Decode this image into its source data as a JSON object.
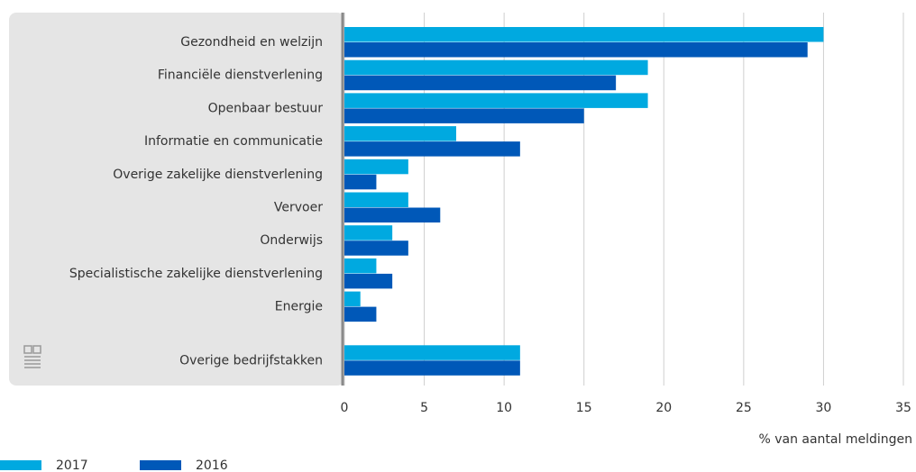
{
  "chart_data": {
    "type": "bar",
    "orientation": "horizontal",
    "categories": [
      "Gezondheid en welzijn",
      "Financiële dienstverlening",
      "Openbaar bestuur",
      "Informatie en communicatie",
      "Overige zakelijke dienstverlening",
      "Vervoer",
      "Onderwijs",
      "Specialistische zakelijke dienstverlening",
      "Energie",
      "Overige bedrijfstakken"
    ],
    "series": [
      {
        "name": "2017",
        "color": "#00a9e0",
        "values": [
          30,
          19,
          19,
          7,
          4,
          4,
          3,
          2,
          1,
          11
        ]
      },
      {
        "name": "2016",
        "color": "#0058b8",
        "values": [
          29,
          17,
          15,
          11,
          2,
          6,
          4,
          3,
          2,
          11
        ]
      }
    ],
    "xlabel": "% van aantal meldingen",
    "xlim": [
      0,
      35
    ],
    "xticks": [
      0,
      5,
      10,
      15,
      20,
      25,
      30,
      35
    ],
    "grid": true
  }
}
